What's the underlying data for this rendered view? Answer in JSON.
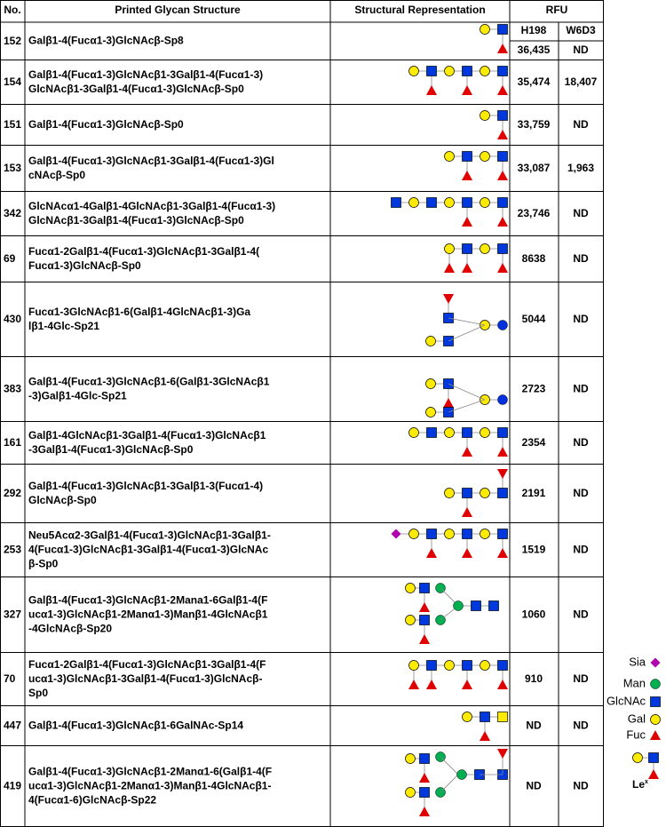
{
  "header": {
    "no": "No.",
    "structure": "Printed Glycan Structure",
    "representation": "Structural Representation",
    "rfu": "RFU",
    "columns": [
      "H198",
      "W6D3"
    ]
  },
  "rows": [
    {
      "id": "152",
      "lines": [
        "Galβ1-4(Fucα1-3)GlcNAcβ-Sp8"
      ],
      "h198": "36,435",
      "w6d3": "ND"
    },
    {
      "id": "154",
      "lines": [
        "Galβ1-4(Fucα1-3)GlcNAcβ1-3Galβ1-4(Fucα1-3)",
        "GlcNAcβ1-3Galβ1-4(Fucα1-3)GlcNAcβ-Sp0"
      ],
      "h198": "35,474",
      "w6d3": "18,407"
    },
    {
      "id": "151",
      "lines": [
        "Galβ1-4(Fucα1-3)GlcNAcβ-Sp0"
      ],
      "h198": "33,759",
      "w6d3": "ND"
    },
    {
      "id": "153",
      "lines": [
        "Galβ1-4(Fucα1-3)GlcNAcβ1-3Galβ1-4(Fucα1-3)Gl",
        "cNAcβ-Sp0"
      ],
      "h198": "33,087",
      "w6d3": "1,963"
    },
    {
      "id": "342",
      "lines": [
        "GlcNAcα1-4Galβ1-4GlcNAcβ1-3Galβ1-4(Fucα1-3)",
        "GlcNAcβ1-3Galβ1-4(Fucα1-3)GlcNAcβ-Sp0"
      ],
      "h198": "23,746",
      "w6d3": "ND"
    },
    {
      "id": "69",
      "lines": [
        "Fucα1-2Galβ1-4(Fucα1-3)GlcNAcβ1-3Galβ1-4(",
        "Fucα1-3)GlcNAcβ-Sp0"
      ],
      "h198": "8638",
      "w6d3": "ND"
    },
    {
      "id": "430",
      "lines": [
        "Fucα1-3GlcNAcβ1-6(Galβ1-4GlcNAcβ1-3)Ga",
        "lβ1-4Glc-Sp21"
      ],
      "h198": "5044",
      "w6d3": "ND"
    },
    {
      "id": "383",
      "lines": [
        "Galβ1-4(Fucα1-3)GlcNAcβ1-6(Galβ1-3GlcNAcβ1",
        "-3)Galβ1-4Glc-Sp21"
      ],
      "h198": "2723",
      "w6d3": "ND"
    },
    {
      "id": "161",
      "lines": [
        "Galβ1-4GlcNAcβ1-3Galβ1-4(Fucα1-3)GlcNAcβ1",
        "-3Galβ1-4(Fucα1-3)GlcNAcβ-Sp0"
      ],
      "h198": "2354",
      "w6d3": "ND"
    },
    {
      "id": "292",
      "lines": [
        "Galβ1-4(Fucα1-3)GlcNAcβ1-3Galβ1-3(Fucα1-4)",
        "GlcNAcβ-Sp0"
      ],
      "h198": "2191",
      "w6d3": "ND"
    },
    {
      "id": "253",
      "lines": [
        "Neu5Acα2-3Galβ1-4(Fucα1-3)GlcNAcβ1-3Galβ1-",
        "4(Fucα1-3)GlcNAcβ1-3Galβ1-4(Fucα1-3)GlcNAc",
        "β-Sp0"
      ],
      "h198": "1519",
      "w6d3": "ND"
    },
    {
      "id": "327",
      "lines": [
        "Galβ1-4(Fucα1-3)GlcNAcβ1-2Mana1-6Galβ1-4(F",
        "ucα1-3)GlcNAcβ1-2Manα1-3)Manβ1-4GlcNAcβ1",
        "-4GlcNAcβ-Sp20"
      ],
      "h198": "1060",
      "w6d3": "ND"
    },
    {
      "id": "70",
      "lines": [
        "Fucα1-2Galβ1-4(Fucα1-3)GlcNAcβ1-3Galβ1-4(F",
        "ucα1-3)GlcNAcβ1-3Galβ1-4(Fucα1-3)GlcNAcβ-",
        "Sp0"
      ],
      "h198": "910",
      "w6d3": "ND"
    },
    {
      "id": "447",
      "lines": [
        "Galβ1-4(Fucα1-3)GlcNAcβ1-6GalNAc-Sp14"
      ],
      "h198": "ND",
      "w6d3": "ND"
    },
    {
      "id": "419",
      "lines": [
        "Galβ1-4(Fucα1-3)GlcNAcβ1-2Manα1-6(Galβ1-4(F",
        "ucα1-3)GlcNAcβ1-2Manα1-3)Manβ1-4GlcNAcβ1-",
        "4(Fucα1-6)GlcNAcβ-Sp22"
      ],
      "h198": "ND",
      "w6d3": "ND"
    }
  ],
  "legend": {
    "items": [
      "Sia",
      "Man",
      "GlcNAc",
      "Gal",
      "Fuc"
    ],
    "lex": {
      "main": "Le",
      "sup": "x"
    }
  }
}
